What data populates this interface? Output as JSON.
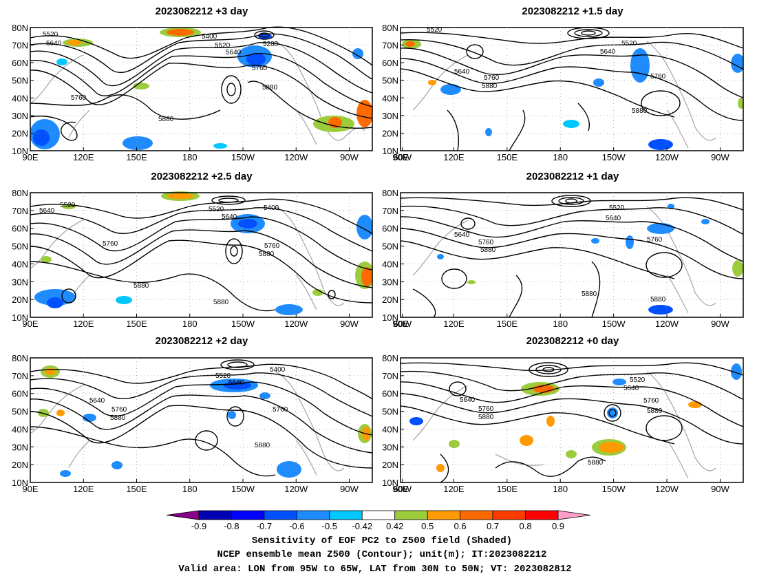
{
  "panels": [
    {
      "title": "2023082212 +3 day"
    },
    {
      "title": "2023082212 +1.5 day"
    },
    {
      "title": "2023082212 +2.5 day"
    },
    {
      "title": "2023082212 +1 day"
    },
    {
      "title": "2023082212 +2 day"
    },
    {
      "title": "2023082212 +0 day"
    }
  ],
  "axes": {
    "lon_ticks": [
      "90E",
      "120E",
      "150E",
      "180",
      "150W",
      "120W",
      "90W",
      "60W"
    ],
    "lat_ticks": [
      "80N",
      "70N",
      "60N",
      "50N",
      "40N",
      "30N",
      "20N",
      "10N"
    ]
  },
  "contour_labels": [
    "5280",
    "5400",
    "5520",
    "5640",
    "5760",
    "5880"
  ],
  "colorbar": {
    "colors": [
      "#8a008a",
      "#0000b4",
      "#0000ff",
      "#0050ff",
      "#1e8cff",
      "#00c8ff",
      "#ffffff",
      "#9ccc3c",
      "#ff9b00",
      "#ff6a00",
      "#ff3c00",
      "#ff0000",
      "#ff9ec8"
    ],
    "labels": [
      "-0.9",
      "-0.8",
      "-0.7",
      "-0.6",
      "-0.5",
      "-0.42",
      "0.42",
      "0.5",
      "0.6",
      "0.7",
      "0.8",
      "0.9"
    ]
  },
  "caption": [
    "Sensitivity of EOF PC2 to Z500 field (Shaded)",
    "NCEP ensemble mean Z500 (Contour); unit(m); IT:2023082212",
    "Valid area: LON from 95W to 65W, LAT from 30N to 50N; VT: 2023082812"
  ]
}
